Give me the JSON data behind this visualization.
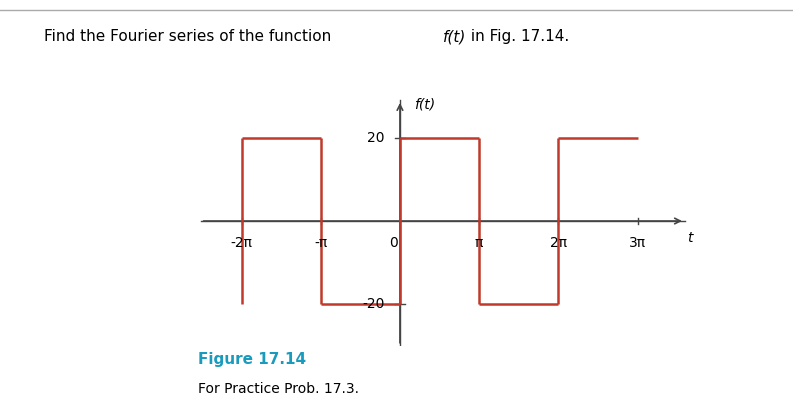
{
  "amplitude": 20,
  "square_wave_color": "#c0392b",
  "line_width": 1.8,
  "axis_color": "#444444",
  "background_color": "#ffffff",
  "tick_labels": [
    "-2π",
    "-π",
    "0",
    "π",
    "2π",
    "3π"
  ],
  "tick_positions": [
    -6.2832,
    -3.1416,
    0,
    3.1416,
    6.2832,
    9.4248
  ],
  "ylim": [
    -30,
    30
  ],
  "xlim": [
    -8.0,
    11.5
  ],
  "y_ticks": [
    -20,
    20
  ],
  "y_tick_labels": [
    "-20",
    "20"
  ],
  "figure_label": "Figure 17.14",
  "figure_sublabel": "For Practice Prob. 17.3.",
  "figure_label_color": "#1a9bbd",
  "title_prefix": "Find the Fourier series of the function ",
  "title_italic": "f(t)",
  "title_suffix": " in Fig. 17.14.",
  "top_line_color": "#aaaaaa",
  "ylabel": "f(t)",
  "xlabel": "t"
}
